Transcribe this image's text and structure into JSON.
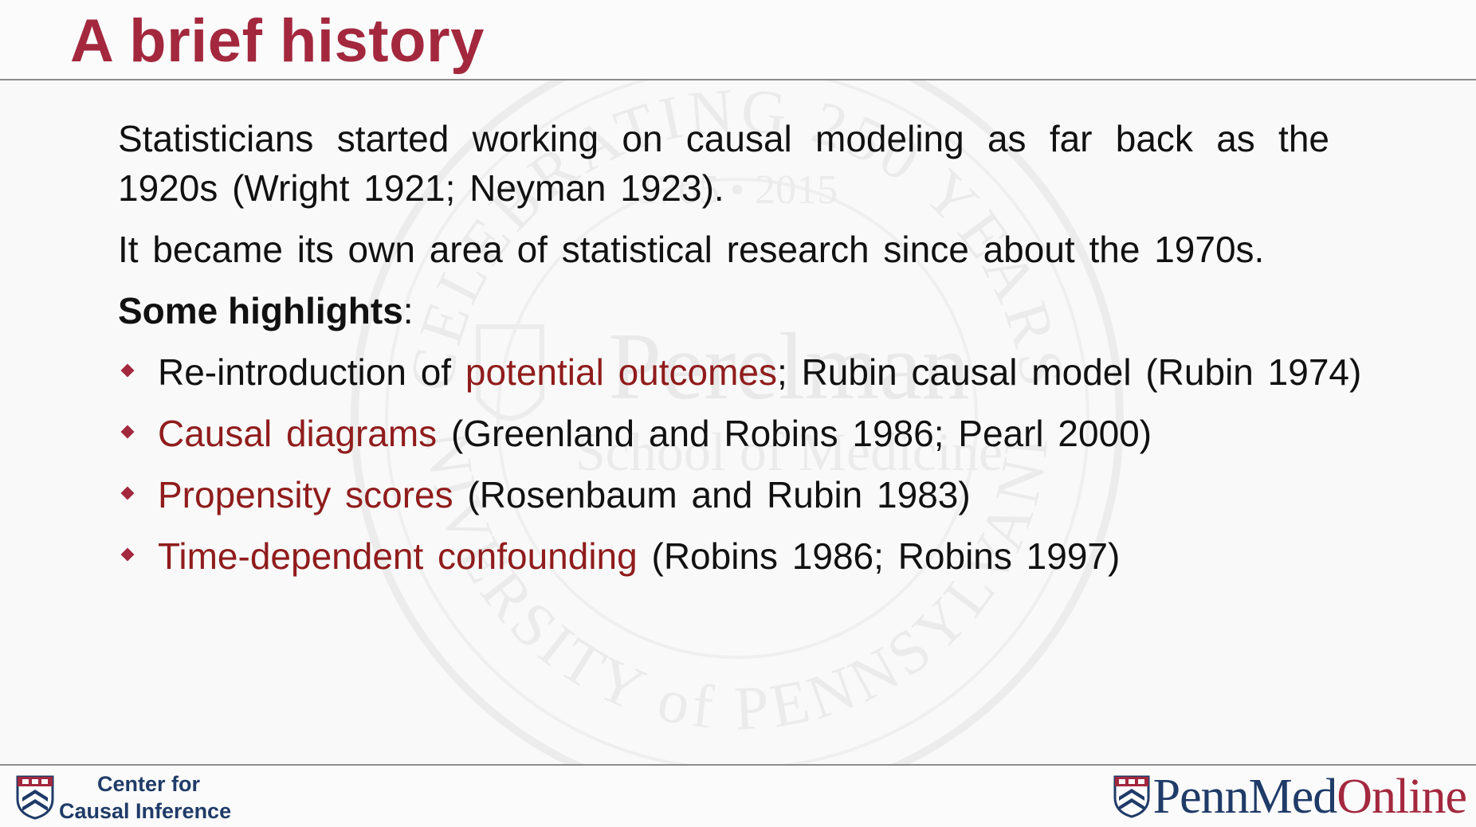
{
  "slide": {
    "title": "A brief history"
  },
  "content": {
    "paragraph1": "Statisticians started working on causal modeling as far back as the 1920s (Wright 1921; Neyman 1923).",
    "paragraph2": "It became its own area of statistical research since about the 1970s.",
    "highlights_label": "Some highlights",
    "highlights_colon": ":",
    "bullets": [
      {
        "prefix": "Re-introduction of ",
        "term": "potential outcomes",
        "suffix": "; Rubin causal model (Rubin 1974)"
      },
      {
        "prefix": "",
        "term": "Causal diagrams",
        "suffix": " (Greenland and Robins 1986; Pearl 2000)"
      },
      {
        "prefix": "",
        "term": "Propensity scores",
        "suffix": " (Rosenbaum and Rubin 1983)"
      },
      {
        "prefix": "",
        "term": "Time-dependent confounding",
        "suffix": " (Robins 1986; Robins 1997)"
      }
    ]
  },
  "watermark": {
    "arc_top": "CELEBRATING 250 YEARS",
    "years": "1765 • 2015",
    "name": "Perelman",
    "school": "School of Medicine",
    "arc_bottom": "UNIVERSITY of PENNSYLVANIA"
  },
  "footer": {
    "center_line1": "Center for",
    "center_line2": "Causal Inference",
    "logo_part1": "PennMed",
    "logo_part2": "Online"
  },
  "colors": {
    "title": "#a3283e",
    "term": "#901c1c",
    "logo_blue": "#1f3b68",
    "bullet": "#a3283e"
  },
  "icons": {
    "bullet": "diamond-bullet-icon",
    "center_logo": "penn-shield-icon",
    "pennmed_logo": "penn-shield-icon"
  }
}
